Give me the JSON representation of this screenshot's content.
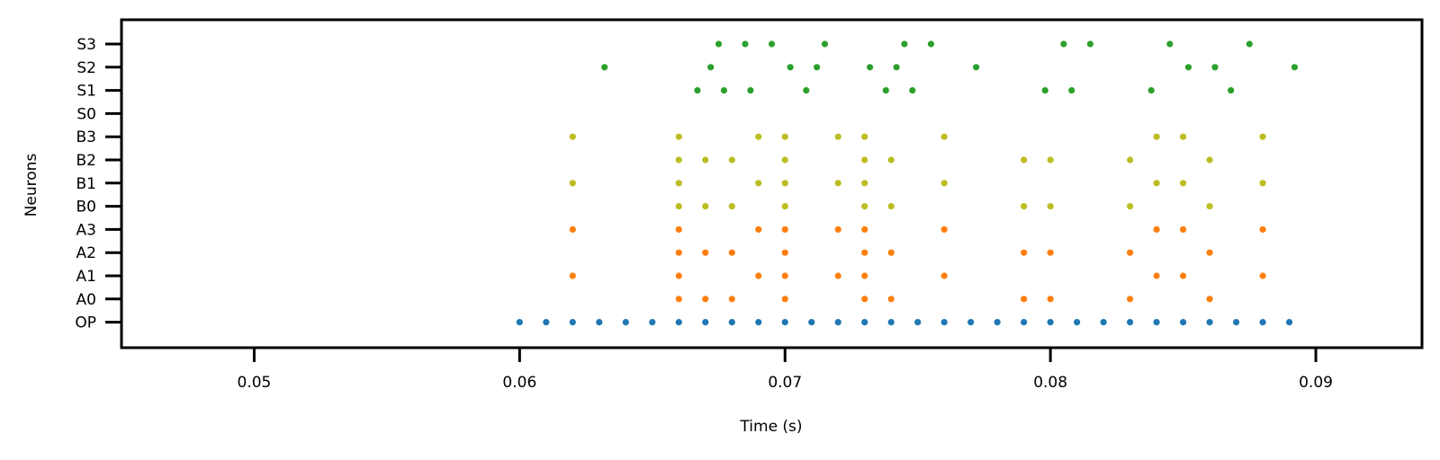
{
  "chart_data": {
    "type": "scatter",
    "title": "",
    "xlabel": "Time (s)",
    "ylabel": "Neurons",
    "xlim": [
      0.045,
      0.094
    ],
    "x_ticks": [
      0.05,
      0.06,
      0.07,
      0.08,
      0.09
    ],
    "x_tick_labels": [
      "0.05",
      "0.06",
      "0.07",
      "0.08",
      "0.09"
    ],
    "categories": [
      "OP",
      "A0",
      "A1",
      "A2",
      "A3",
      "B0",
      "B1",
      "B2",
      "B3",
      "S0",
      "S1",
      "S2",
      "S3"
    ],
    "grid": false,
    "legend": false,
    "series": [
      {
        "color": "#1f77b4",
        "points": [
          {
            "x": 0.06,
            "y": "OP"
          },
          {
            "x": 0.061,
            "y": "OP"
          },
          {
            "x": 0.062,
            "y": "OP"
          },
          {
            "x": 0.063,
            "y": "OP"
          },
          {
            "x": 0.064,
            "y": "OP"
          },
          {
            "x": 0.065,
            "y": "OP"
          },
          {
            "x": 0.066,
            "y": "OP"
          },
          {
            "x": 0.067,
            "y": "OP"
          },
          {
            "x": 0.068,
            "y": "OP"
          },
          {
            "x": 0.069,
            "y": "OP"
          },
          {
            "x": 0.07,
            "y": "OP"
          },
          {
            "x": 0.071,
            "y": "OP"
          },
          {
            "x": 0.072,
            "y": "OP"
          },
          {
            "x": 0.073,
            "y": "OP"
          },
          {
            "x": 0.074,
            "y": "OP"
          },
          {
            "x": 0.075,
            "y": "OP"
          },
          {
            "x": 0.076,
            "y": "OP"
          },
          {
            "x": 0.077,
            "y": "OP"
          },
          {
            "x": 0.078,
            "y": "OP"
          },
          {
            "x": 0.079,
            "y": "OP"
          },
          {
            "x": 0.08,
            "y": "OP"
          },
          {
            "x": 0.081,
            "y": "OP"
          },
          {
            "x": 0.082,
            "y": "OP"
          },
          {
            "x": 0.083,
            "y": "OP"
          },
          {
            "x": 0.084,
            "y": "OP"
          },
          {
            "x": 0.085,
            "y": "OP"
          },
          {
            "x": 0.086,
            "y": "OP"
          },
          {
            "x": 0.087,
            "y": "OP"
          },
          {
            "x": 0.088,
            "y": "OP"
          },
          {
            "x": 0.089,
            "y": "OP"
          }
        ]
      },
      {
        "color": "#ff7f0e",
        "points": [
          {
            "x": 0.066,
            "y": "A0"
          },
          {
            "x": 0.067,
            "y": "A0"
          },
          {
            "x": 0.068,
            "y": "A0"
          },
          {
            "x": 0.07,
            "y": "A0"
          },
          {
            "x": 0.073,
            "y": "A0"
          },
          {
            "x": 0.074,
            "y": "A0"
          },
          {
            "x": 0.079,
            "y": "A0"
          },
          {
            "x": 0.08,
            "y": "A0"
          },
          {
            "x": 0.083,
            "y": "A0"
          },
          {
            "x": 0.086,
            "y": "A0"
          },
          {
            "x": 0.062,
            "y": "A1"
          },
          {
            "x": 0.066,
            "y": "A1"
          },
          {
            "x": 0.069,
            "y": "A1"
          },
          {
            "x": 0.07,
            "y": "A1"
          },
          {
            "x": 0.072,
            "y": "A1"
          },
          {
            "x": 0.073,
            "y": "A1"
          },
          {
            "x": 0.076,
            "y": "A1"
          },
          {
            "x": 0.084,
            "y": "A1"
          },
          {
            "x": 0.085,
            "y": "A1"
          },
          {
            "x": 0.088,
            "y": "A1"
          },
          {
            "x": 0.066,
            "y": "A2"
          },
          {
            "x": 0.067,
            "y": "A2"
          },
          {
            "x": 0.068,
            "y": "A2"
          },
          {
            "x": 0.07,
            "y": "A2"
          },
          {
            "x": 0.073,
            "y": "A2"
          },
          {
            "x": 0.074,
            "y": "A2"
          },
          {
            "x": 0.079,
            "y": "A2"
          },
          {
            "x": 0.08,
            "y": "A2"
          },
          {
            "x": 0.083,
            "y": "A2"
          },
          {
            "x": 0.086,
            "y": "A2"
          },
          {
            "x": 0.062,
            "y": "A3"
          },
          {
            "x": 0.066,
            "y": "A3"
          },
          {
            "x": 0.069,
            "y": "A3"
          },
          {
            "x": 0.07,
            "y": "A3"
          },
          {
            "x": 0.072,
            "y": "A3"
          },
          {
            "x": 0.073,
            "y": "A3"
          },
          {
            "x": 0.076,
            "y": "A3"
          },
          {
            "x": 0.084,
            "y": "A3"
          },
          {
            "x": 0.085,
            "y": "A3"
          },
          {
            "x": 0.088,
            "y": "A3"
          }
        ]
      },
      {
        "color": "#bcbd22",
        "points": [
          {
            "x": 0.066,
            "y": "B0"
          },
          {
            "x": 0.067,
            "y": "B0"
          },
          {
            "x": 0.068,
            "y": "B0"
          },
          {
            "x": 0.07,
            "y": "B0"
          },
          {
            "x": 0.073,
            "y": "B0"
          },
          {
            "x": 0.074,
            "y": "B0"
          },
          {
            "x": 0.079,
            "y": "B0"
          },
          {
            "x": 0.08,
            "y": "B0"
          },
          {
            "x": 0.083,
            "y": "B0"
          },
          {
            "x": 0.086,
            "y": "B0"
          },
          {
            "x": 0.062,
            "y": "B1"
          },
          {
            "x": 0.066,
            "y": "B1"
          },
          {
            "x": 0.069,
            "y": "B1"
          },
          {
            "x": 0.07,
            "y": "B1"
          },
          {
            "x": 0.072,
            "y": "B1"
          },
          {
            "x": 0.073,
            "y": "B1"
          },
          {
            "x": 0.076,
            "y": "B1"
          },
          {
            "x": 0.084,
            "y": "B1"
          },
          {
            "x": 0.085,
            "y": "B1"
          },
          {
            "x": 0.088,
            "y": "B1"
          },
          {
            "x": 0.066,
            "y": "B2"
          },
          {
            "x": 0.067,
            "y": "B2"
          },
          {
            "x": 0.068,
            "y": "B2"
          },
          {
            "x": 0.07,
            "y": "B2"
          },
          {
            "x": 0.073,
            "y": "B2"
          },
          {
            "x": 0.074,
            "y": "B2"
          },
          {
            "x": 0.079,
            "y": "B2"
          },
          {
            "x": 0.08,
            "y": "B2"
          },
          {
            "x": 0.083,
            "y": "B2"
          },
          {
            "x": 0.086,
            "y": "B2"
          },
          {
            "x": 0.062,
            "y": "B3"
          },
          {
            "x": 0.066,
            "y": "B3"
          },
          {
            "x": 0.069,
            "y": "B3"
          },
          {
            "x": 0.07,
            "y": "B3"
          },
          {
            "x": 0.072,
            "y": "B3"
          },
          {
            "x": 0.073,
            "y": "B3"
          },
          {
            "x": 0.076,
            "y": "B3"
          },
          {
            "x": 0.084,
            "y": "B3"
          },
          {
            "x": 0.085,
            "y": "B3"
          },
          {
            "x": 0.088,
            "y": "B3"
          }
        ]
      },
      {
        "color": "#2ca02c",
        "points": [
          {
            "x": 0.0667,
            "y": "S1"
          },
          {
            "x": 0.0677,
            "y": "S1"
          },
          {
            "x": 0.0687,
            "y": "S1"
          },
          {
            "x": 0.0708,
            "y": "S1"
          },
          {
            "x": 0.0738,
            "y": "S1"
          },
          {
            "x": 0.0748,
            "y": "S1"
          },
          {
            "x": 0.0798,
            "y": "S1"
          },
          {
            "x": 0.0808,
            "y": "S1"
          },
          {
            "x": 0.0838,
            "y": "S1"
          },
          {
            "x": 0.0868,
            "y": "S1"
          },
          {
            "x": 0.0632,
            "y": "S2"
          },
          {
            "x": 0.0672,
            "y": "S2"
          },
          {
            "x": 0.0702,
            "y": "S2"
          },
          {
            "x": 0.0712,
            "y": "S2"
          },
          {
            "x": 0.0732,
            "y": "S2"
          },
          {
            "x": 0.0742,
            "y": "S2"
          },
          {
            "x": 0.0772,
            "y": "S2"
          },
          {
            "x": 0.0852,
            "y": "S2"
          },
          {
            "x": 0.0862,
            "y": "S2"
          },
          {
            "x": 0.0892,
            "y": "S2"
          },
          {
            "x": 0.0675,
            "y": "S3"
          },
          {
            "x": 0.0685,
            "y": "S3"
          },
          {
            "x": 0.0695,
            "y": "S3"
          },
          {
            "x": 0.0715,
            "y": "S3"
          },
          {
            "x": 0.0745,
            "y": "S3"
          },
          {
            "x": 0.0755,
            "y": "S3"
          },
          {
            "x": 0.0805,
            "y": "S3"
          },
          {
            "x": 0.0815,
            "y": "S3"
          },
          {
            "x": 0.0845,
            "y": "S3"
          },
          {
            "x": 0.0875,
            "y": "S3"
          }
        ]
      }
    ]
  }
}
